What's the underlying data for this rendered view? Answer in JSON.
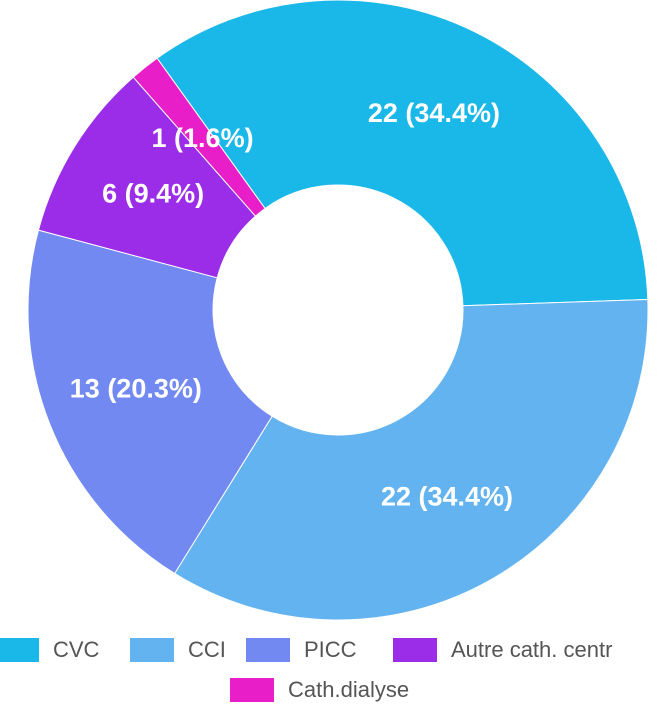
{
  "chart_data": {
    "type": "donut",
    "categories": [
      "CVC",
      "CCI",
      "PICC",
      "Autre cath. centr",
      "Cath.dialyse"
    ],
    "values": [
      22,
      22,
      13,
      6,
      1
    ],
    "value_labels": [
      "22 (34.4%)",
      "22 (34.4%)",
      "13 (20.3%)",
      "6 (9.4%)",
      "1 (1.6%)"
    ],
    "colors": [
      "#1ab8e8",
      "#63b3f0",
      "#7189f0",
      "#9b2de8",
      "#e81ec8"
    ],
    "legend": "bottom"
  }
}
